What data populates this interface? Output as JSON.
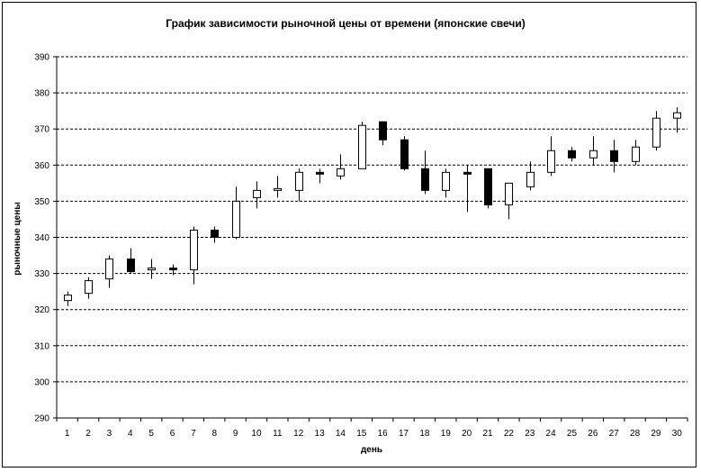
{
  "chart_data": {
    "type": "candlestick",
    "title": "График зависимости рыночной цены от времени (японские свечи)",
    "xlabel": "день",
    "ylabel": "рыночные цены",
    "ylim": [
      290,
      390
    ],
    "ytick_step": 10,
    "grid": "horizontal-dashed",
    "colors": {
      "up": "#ffffff",
      "down": "#000000",
      "stroke": "#000000"
    },
    "x": [
      1,
      2,
      3,
      4,
      5,
      6,
      7,
      8,
      9,
      10,
      11,
      12,
      13,
      14,
      15,
      16,
      17,
      18,
      19,
      20,
      21,
      22,
      23,
      24,
      25,
      26,
      27,
      28,
      29,
      30
    ],
    "ohlc": [
      {
        "open": 322.5,
        "high": 325,
        "low": 321,
        "close": 324
      },
      {
        "open": 324.5,
        "high": 329,
        "low": 323,
        "close": 328
      },
      {
        "open": 328.5,
        "high": 335,
        "low": 326,
        "close": 334
      },
      {
        "open": 334,
        "high": 337,
        "low": 330,
        "close": 330.5
      },
      {
        "open": 331,
        "high": 334,
        "low": 328.5,
        "close": 331.5
      },
      {
        "open": 331.5,
        "high": 332.5,
        "low": 329.5,
        "close": 331
      },
      {
        "open": 331,
        "high": 343,
        "low": 327,
        "close": 342
      },
      {
        "open": 342,
        "high": 343,
        "low": 338.5,
        "close": 340
      },
      {
        "open": 340,
        "high": 354,
        "low": 339.5,
        "close": 350
      },
      {
        "open": 351,
        "high": 355.5,
        "low": 348,
        "close": 353
      },
      {
        "open": 353,
        "high": 357,
        "low": 351,
        "close": 353.5
      },
      {
        "open": 353,
        "high": 359,
        "low": 350,
        "close": 358
      },
      {
        "open": 358,
        "high": 359,
        "low": 355,
        "close": 357.5
      },
      {
        "open": 357,
        "high": 363,
        "low": 356,
        "close": 359
      },
      {
        "open": 359,
        "high": 372,
        "low": 359,
        "close": 371
      },
      {
        "open": 372,
        "high": 372,
        "low": 365.5,
        "close": 367
      },
      {
        "open": 367,
        "high": 368,
        "low": 358.5,
        "close": 359
      },
      {
        "open": 359,
        "high": 364,
        "low": 352,
        "close": 353
      },
      {
        "open": 353,
        "high": 359,
        "low": 351,
        "close": 358
      },
      {
        "open": 358,
        "high": 360,
        "low": 347,
        "close": 357.5
      },
      {
        "open": 359,
        "high": 359,
        "low": 348,
        "close": 349
      },
      {
        "open": 349,
        "high": 355,
        "low": 345,
        "close": 355
      },
      {
        "open": 354,
        "high": 361,
        "low": 353,
        "close": 358
      },
      {
        "open": 358,
        "high": 368,
        "low": 357,
        "close": 364
      },
      {
        "open": 364,
        "high": 365,
        "low": 361,
        "close": 362
      },
      {
        "open": 362,
        "high": 368,
        "low": 360,
        "close": 364
      },
      {
        "open": 364,
        "high": 367,
        "low": 358,
        "close": 361
      },
      {
        "open": 361,
        "high": 367,
        "low": 360,
        "close": 365
      },
      {
        "open": 365,
        "high": 375,
        "low": 364,
        "close": 373
      },
      {
        "open": 373,
        "high": 376,
        "low": 369,
        "close": 374.5
      }
    ]
  }
}
